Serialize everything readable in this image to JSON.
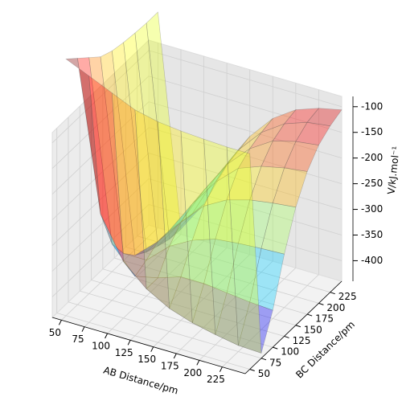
{
  "chart_data": {
    "type": "surface3d",
    "xlabel": "AB Distance/pm",
    "ylabel": "BC Distance/pm",
    "zlabel": "V/kJ.mol⁻¹",
    "x": [
      50,
      75,
      100,
      125,
      150,
      175,
      200,
      225,
      250
    ],
    "y": [
      50,
      75,
      100,
      125,
      150,
      175,
      200,
      225,
      250
    ],
    "z": [
      [
        60,
        40,
        20,
        0,
        -10,
        -15,
        -18,
        -20,
        -20
      ],
      [
        40,
        -250,
        -330,
        -370,
        -395,
        -410,
        -420,
        -428,
        -430
      ],
      [
        20,
        -330,
        -380,
        -370,
        -355,
        -355,
        -360,
        -365,
        -368
      ],
      [
        0,
        -370,
        -370,
        -330,
        -305,
        -290,
        -285,
        -282,
        -280
      ],
      [
        -10,
        -395,
        -355,
        -305,
        -260,
        -235,
        -222,
        -215,
        -210
      ],
      [
        -15,
        -410,
        -355,
        -290,
        -235,
        -195,
        -178,
        -168,
        -162
      ],
      [
        -18,
        -420,
        -360,
        -285,
        -222,
        -178,
        -150,
        -138,
        -132
      ],
      [
        -20,
        -428,
        -365,
        -282,
        -215,
        -168,
        -138,
        -122,
        -116
      ],
      [
        -20,
        -430,
        -368,
        -280,
        -210,
        -162,
        -132,
        -116,
        -106
      ]
    ],
    "xlim": [
      40,
      250
    ],
    "ylim": [
      40,
      250
    ],
    "zlim": [
      -440,
      -80
    ],
    "xticks": [
      50,
      75,
      100,
      125,
      150,
      175,
      200,
      225
    ],
    "yticks": [
      50,
      75,
      100,
      125,
      150,
      175,
      200,
      225
    ],
    "zticks": [
      -400,
      -350,
      -300,
      -250,
      -200,
      -150,
      -100
    ],
    "colormap": "jet",
    "alpha": 0.35,
    "grid": true
  }
}
